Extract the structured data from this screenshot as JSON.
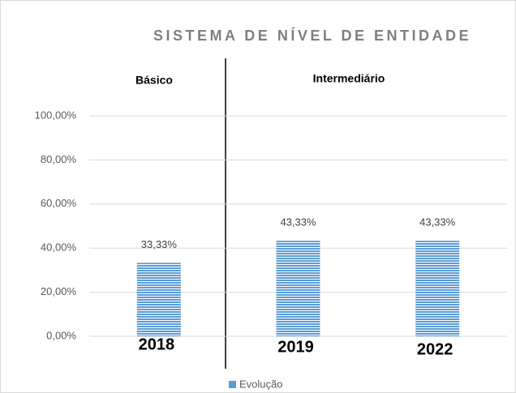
{
  "chart_data": {
    "type": "bar",
    "title": "SISTEMA DE NÍVEL DE ENTIDADE",
    "annotations": [
      "Básico",
      "Intermediário"
    ],
    "categories": [
      "2018",
      "2019",
      "2022"
    ],
    "series": [
      {
        "name": "Evolução",
        "color": "#5b9bd5",
        "values": [
          33.33,
          43.33,
          43.33
        ],
        "value_labels": [
          "33,33%",
          "43,33%",
          "43,33%"
        ]
      }
    ],
    "ylim": [
      0,
      100
    ],
    "yticks": [
      {
        "value": 0,
        "label": "0,00%"
      },
      {
        "value": 20,
        "label": "20,00%"
      },
      {
        "value": 40,
        "label": "40,00%"
      },
      {
        "value": 60,
        "label": "60,00%"
      },
      {
        "value": 80,
        "label": "80,00%"
      },
      {
        "value": 100,
        "label": "100,00%"
      }
    ],
    "grid": true,
    "legend": "bottom"
  }
}
